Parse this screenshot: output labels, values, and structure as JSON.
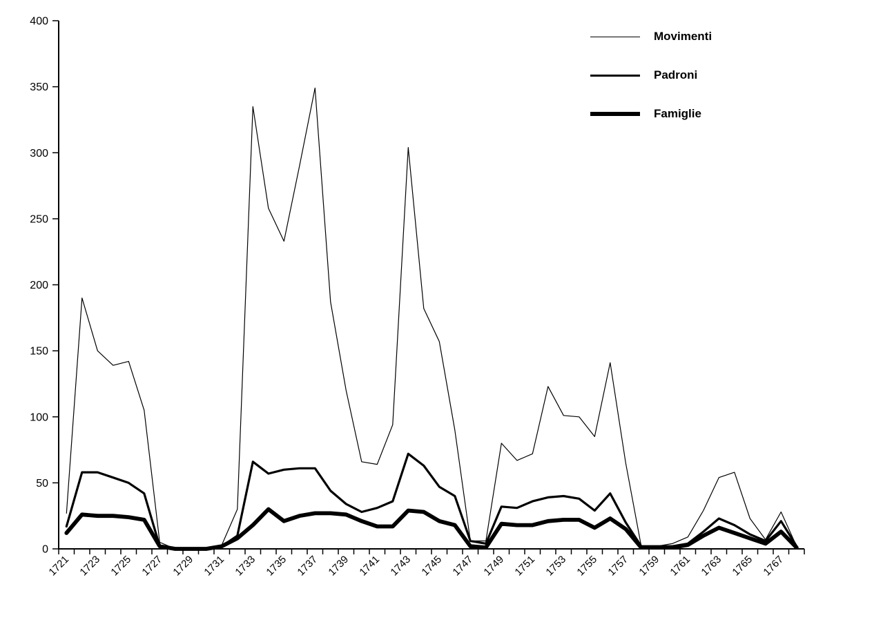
{
  "colors": {
    "line": "#000000",
    "background": "#ffffff",
    "text": "#000000"
  },
  "legend": {
    "items": [
      {
        "label": "Movimenti",
        "stroke_width": 1
      },
      {
        "label": "Padroni",
        "stroke_width": 3
      },
      {
        "label": "Famiglie",
        "stroke_width": 6
      }
    ]
  },
  "chart_data": {
    "type": "line",
    "title": "",
    "xlabel": "",
    "ylabel": "",
    "grid": false,
    "legend_position": "top-right",
    "ylim": [
      0,
      400
    ],
    "yticks": [
      0,
      50,
      100,
      150,
      200,
      250,
      300,
      350,
      400
    ],
    "x": [
      1721,
      1722,
      1723,
      1724,
      1725,
      1726,
      1727,
      1728,
      1729,
      1730,
      1731,
      1732,
      1733,
      1734,
      1735,
      1736,
      1737,
      1738,
      1739,
      1740,
      1741,
      1742,
      1743,
      1744,
      1745,
      1746,
      1747,
      1748,
      1749,
      1750,
      1751,
      1752,
      1753,
      1754,
      1755,
      1756,
      1757,
      1758,
      1759,
      1760,
      1761,
      1762,
      1763,
      1764,
      1765,
      1766,
      1767,
      1768
    ],
    "xtick_labels": [
      "1721",
      "1723",
      "1725",
      "1727",
      "1729",
      "1731",
      "1733",
      "1735",
      "1737",
      "1739",
      "1741",
      "1743",
      "1745",
      "1747",
      "1749",
      "1751",
      "1753",
      "1755",
      "1757",
      "1759",
      "1761",
      "1763",
      "1765",
      "1767"
    ],
    "series": [
      {
        "name": "Movimenti",
        "stroke_width": 1.2,
        "values": [
          27,
          190,
          150,
          139,
          142,
          105,
          5,
          0,
          0,
          0,
          3,
          30,
          335,
          258,
          233,
          290,
          349,
          187,
          120,
          66,
          64,
          94,
          304,
          182,
          157,
          90,
          6,
          6,
          80,
          67,
          72,
          123,
          101,
          100,
          85,
          141,
          65,
          2,
          2,
          4,
          9,
          29,
          54,
          58,
          23,
          7,
          28,
          2
        ]
      },
      {
        "name": "Padroni",
        "stroke_width": 3.2,
        "values": [
          17,
          58,
          58,
          54,
          50,
          42,
          2,
          0,
          0,
          0,
          2,
          10,
          66,
          57,
          60,
          61,
          61,
          44,
          34,
          28,
          31,
          36,
          72,
          63,
          47,
          40,
          6,
          4,
          32,
          31,
          36,
          39,
          40,
          38,
          29,
          42,
          20,
          2,
          2,
          2,
          4,
          13,
          23,
          18,
          11,
          6,
          21,
          2
        ]
      },
      {
        "name": "Famiglie",
        "stroke_width": 5.8,
        "values": [
          12,
          26,
          25,
          25,
          24,
          22,
          2,
          0,
          0,
          0,
          2,
          8,
          18,
          30,
          21,
          25,
          27,
          27,
          26,
          21,
          17,
          17,
          29,
          28,
          21,
          18,
          2,
          1,
          19,
          18,
          18,
          21,
          22,
          22,
          16,
          23,
          15,
          1,
          1,
          1,
          3,
          10,
          16,
          12,
          8,
          4,
          13,
          1
        ]
      }
    ]
  }
}
